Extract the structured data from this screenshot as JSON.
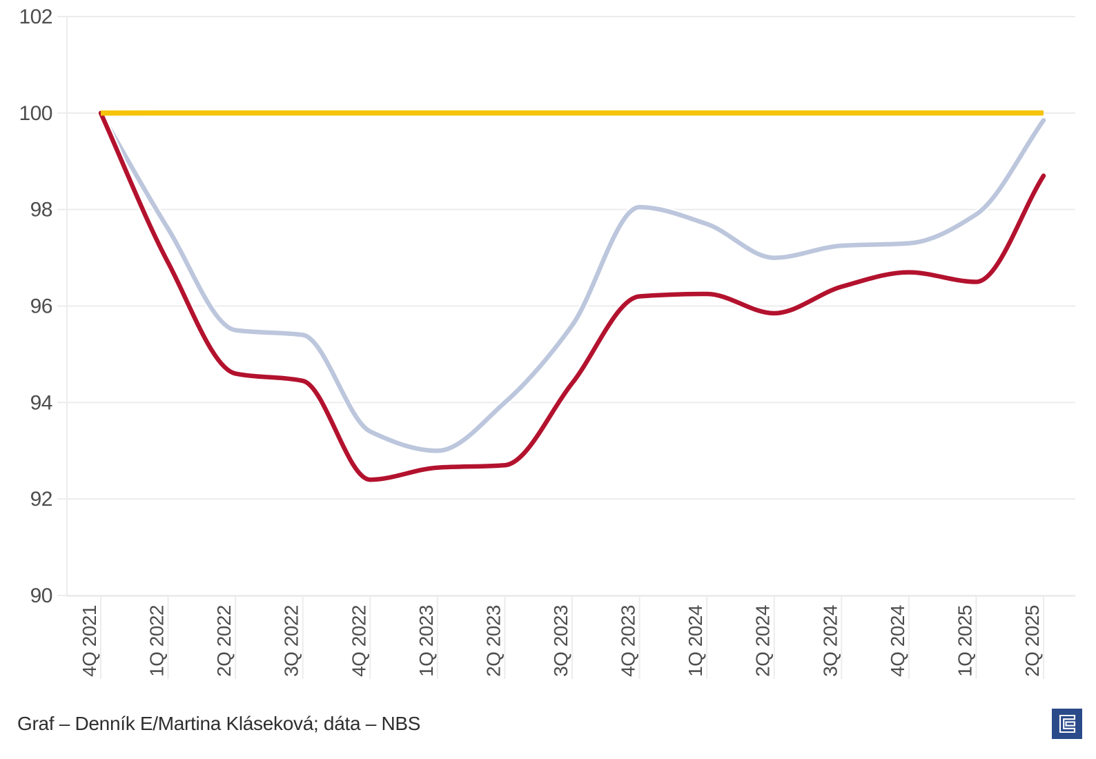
{
  "caption": {
    "text": "Graf – Denník E/Martina Kláseková; dáta – NBS"
  },
  "logo": {
    "name": "Denník E logo",
    "background": "#2A4A8A",
    "glyph_color": "#FFFFFF"
  },
  "chart_data": {
    "type": "line",
    "title": "",
    "xlabel": "",
    "ylabel": "",
    "x_categories": [
      "4Q 2021",
      "1Q 2022",
      "2Q 2022",
      "3Q 2022",
      "4Q 2022",
      "1Q 2023",
      "2Q 2023",
      "3Q 2023",
      "4Q 2023",
      "1Q 2024",
      "2Q 2024",
      "3Q 2024",
      "4Q 2024",
      "1Q 2025",
      "2Q 2025"
    ],
    "y_ticks": [
      102,
      100,
      98,
      96,
      94,
      92,
      90
    ],
    "ylim": [
      90,
      102
    ],
    "grid": true,
    "legend": "none",
    "series": [
      {
        "name": "baseline-100",
        "color": "#F5C40A",
        "values": [
          100,
          100,
          100,
          100,
          100,
          100,
          100,
          100,
          100,
          100,
          100,
          100,
          100,
          100,
          100
        ]
      },
      {
        "name": "light-blue-index",
        "color": "#BCC6DC",
        "values": [
          100,
          97.6,
          95.5,
          95.4,
          93.4,
          93.0,
          94.0,
          95.6,
          98.05,
          97.7,
          97.0,
          97.25,
          97.3,
          97.9,
          99.85
        ]
      },
      {
        "name": "dark-red-index",
        "color": "#B3122E",
        "values": [
          100,
          96.9,
          94.6,
          94.45,
          92.4,
          92.65,
          92.7,
          94.4,
          96.2,
          96.25,
          95.85,
          96.4,
          96.7,
          96.5,
          98.7
        ]
      }
    ],
    "colors": {
      "grid": "#ECECEC",
      "axis_text": "#4D4D4D"
    }
  }
}
